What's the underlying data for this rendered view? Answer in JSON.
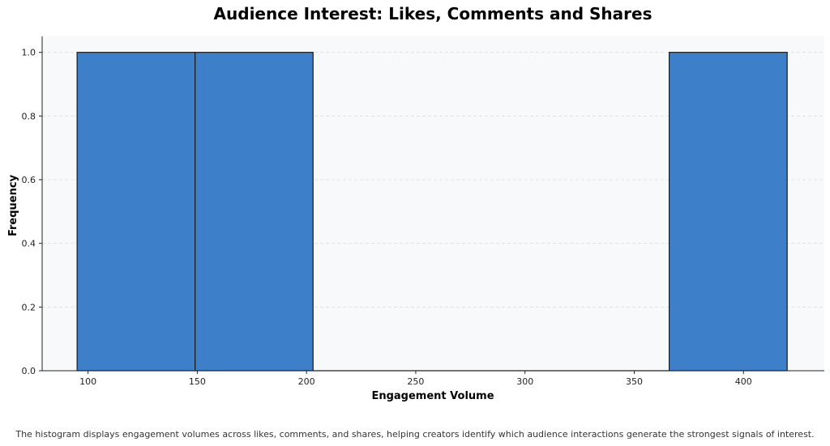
{
  "chart_data": {
    "type": "bar",
    "title": "Audience Interest: Likes, Comments and Shares",
    "xlabel": "Engagement Volume",
    "ylabel": "Frequency",
    "bins": [
      {
        "start": 95,
        "end": 149,
        "value": 1
      },
      {
        "start": 149,
        "end": 203,
        "value": 1
      },
      {
        "start": 203,
        "end": 257,
        "value": 0
      },
      {
        "start": 257,
        "end": 311,
        "value": 0
      },
      {
        "start": 311,
        "end": 366,
        "value": 0
      },
      {
        "start": 366,
        "end": 420,
        "value": 1
      }
    ],
    "xlim": [
      79,
      437
    ],
    "ylim": [
      0,
      1.05
    ],
    "xticks": [
      100,
      150,
      200,
      250,
      300,
      350,
      400
    ],
    "yticks": [
      "0.0",
      "0.2",
      "0.4",
      "0.6",
      "0.8",
      "1.0"
    ],
    "grid": "horizontal dashed",
    "colors": {
      "bar": "#3d80c9",
      "bar_edge": "#1a1a1a",
      "plot_bg": "#f8f9fb",
      "grid": "#dddddd"
    }
  },
  "caption": "The histogram displays engagement volumes across likes, comments, and shares, helping creators identify which audience interactions generate the strongest signals of interest."
}
